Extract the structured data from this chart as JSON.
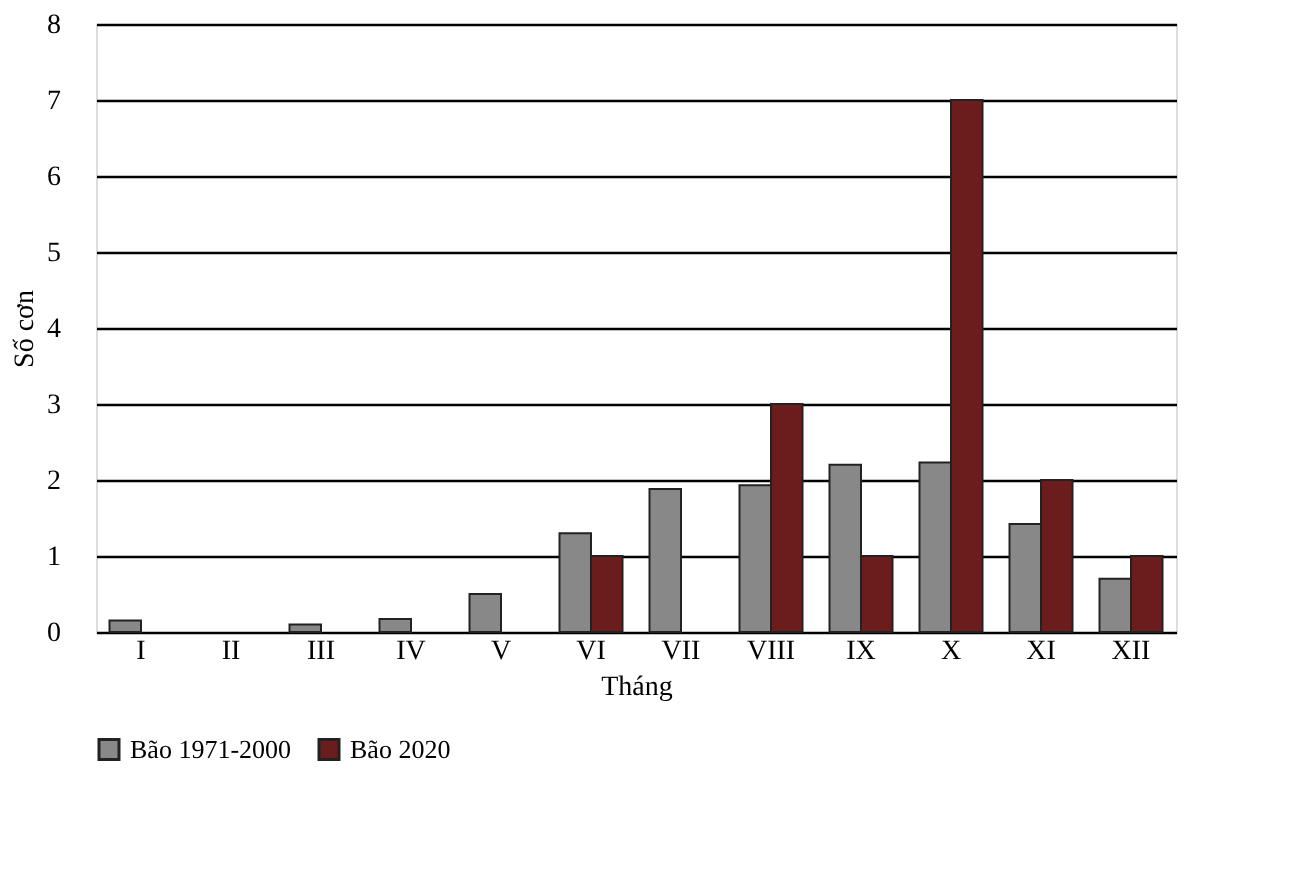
{
  "chart_data": {
    "type": "bar",
    "xlabel": "Tháng",
    "ylabel": "Số cơn",
    "categories": [
      "I",
      "II",
      "III",
      "IV",
      "V",
      "VI",
      "VII",
      "VIII",
      "IX",
      "X",
      "XI",
      "XII"
    ],
    "series": [
      {
        "name": "Bão 1971-2000",
        "color": "#888888",
        "values": [
          0.15,
          0,
          0.1,
          0.17,
          0.5,
          1.3,
          1.88,
          1.93,
          2.2,
          2.23,
          1.42,
          0.7
        ]
      },
      {
        "name": "Bão 2020",
        "color": "#6b1c1c",
        "values": [
          0,
          0,
          0,
          0,
          0,
          1,
          0,
          3,
          1,
          7,
          2,
          1
        ]
      }
    ],
    "ylim": [
      0,
      8
    ],
    "yticks": [
      0,
      1,
      2,
      3,
      4,
      5,
      6,
      7,
      8
    ],
    "grid": "y",
    "legend": "bottom"
  }
}
